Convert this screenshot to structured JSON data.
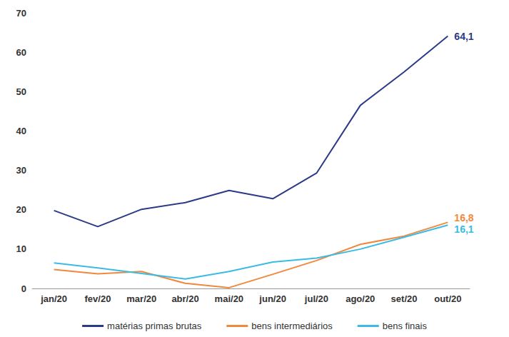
{
  "chart_data": {
    "type": "line",
    "categories": [
      "jan/20",
      "fev/20",
      "mar/20",
      "abr/20",
      "mai/20",
      "jun/20",
      "jul/20",
      "ago/20",
      "set/20",
      "out/20"
    ],
    "series": [
      {
        "name": "matérias primas brutas",
        "color": "#2b3a86",
        "values": [
          19.8,
          15.7,
          20.1,
          21.8,
          24.9,
          22.8,
          29.3,
          46.5,
          55.0,
          64.1
        ],
        "value_labels": [
          null,
          null,
          null,
          null,
          null,
          null,
          null,
          null,
          null,
          "64,1"
        ]
      },
      {
        "name": "bens intermediários",
        "color": "#f0883e",
        "values": [
          4.8,
          3.7,
          4.3,
          1.3,
          0.2,
          3.6,
          7.1,
          11.2,
          13.3,
          16.8
        ],
        "value_labels": [
          null,
          null,
          null,
          null,
          null,
          null,
          null,
          null,
          null,
          "16,8"
        ]
      },
      {
        "name": "bens finais",
        "color": "#3bbbe3",
        "values": [
          6.5,
          5.2,
          3.8,
          2.4,
          4.3,
          6.7,
          7.7,
          10.0,
          13.0,
          16.1
        ],
        "value_labels": [
          null,
          null,
          null,
          null,
          null,
          null,
          null,
          null,
          null,
          "16,1"
        ]
      }
    ],
    "ylim": [
      0,
      70
    ],
    "yticks": [
      0,
      10,
      20,
      30,
      40,
      50,
      60,
      70
    ],
    "grid": false,
    "legend": "bottom"
  }
}
